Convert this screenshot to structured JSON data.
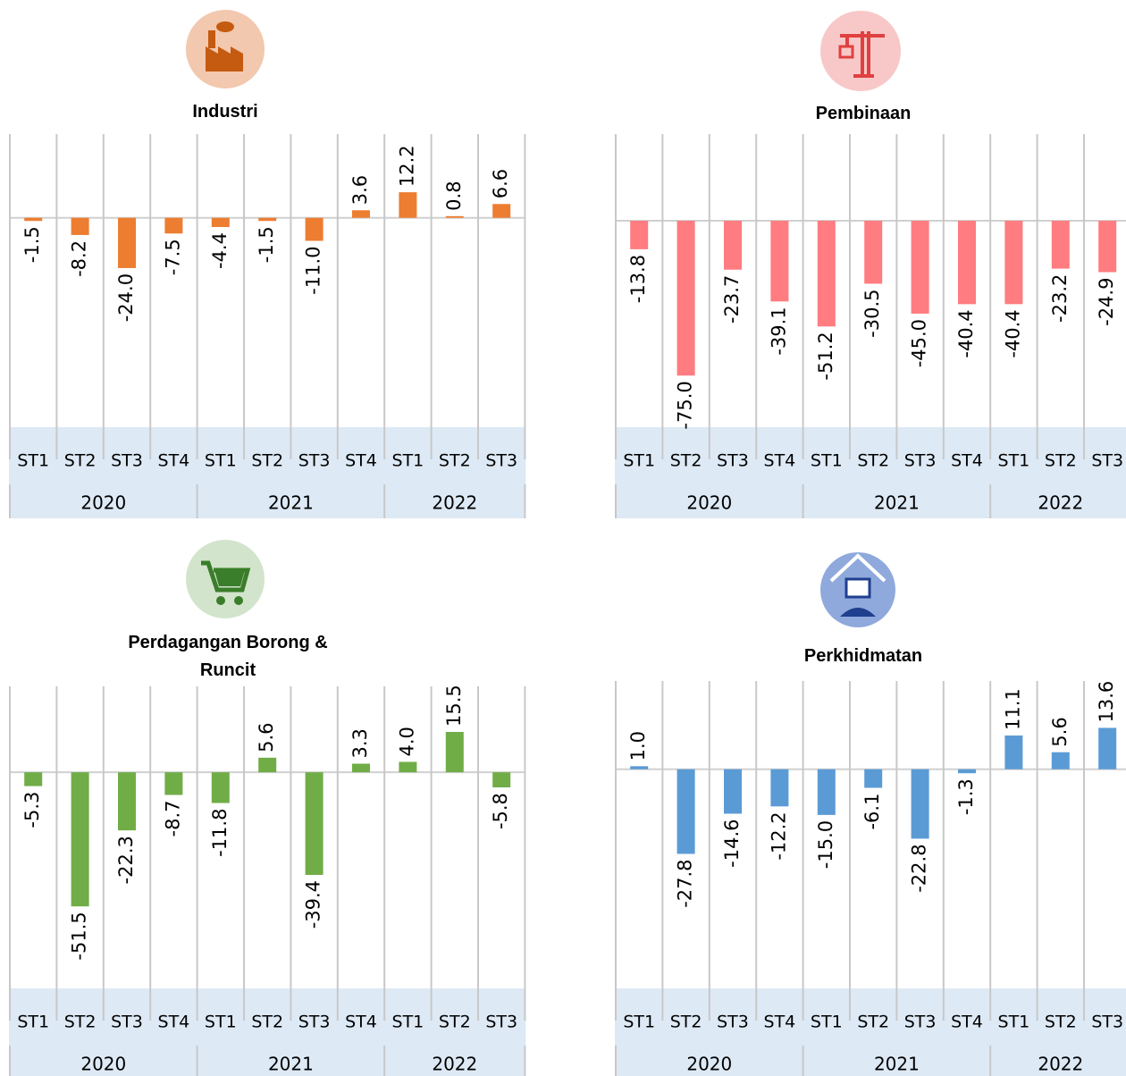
{
  "chart_data": [
    {
      "type": "bar",
      "title": "Industri",
      "color": "#ed7d31",
      "ylim": [
        -100,
        40
      ],
      "categories": [
        "ST1",
        "ST2",
        "ST3",
        "ST4",
        "ST1",
        "ST2",
        "ST3",
        "ST4",
        "ST1",
        "ST2",
        "ST3"
      ],
      "groups": [
        "2020",
        "2021",
        "2022"
      ],
      "values": [
        -1.5,
        -8.2,
        -24.0,
        -7.5,
        -4.4,
        -1.5,
        -11.0,
        3.6,
        12.2,
        0.8,
        6.6
      ],
      "value_labels": [
        "-1.5",
        "-8.2",
        "-24.0",
        "-7.5",
        "-4.4",
        "-1.5",
        "-11.0",
        "3.6",
        "12.2",
        "0.8",
        "6.6"
      ]
    },
    {
      "type": "bar",
      "title": "Pembinaan",
      "color": "#ff7c80",
      "ylim": [
        -100,
        42
      ],
      "categories": [
        "ST1",
        "ST2",
        "ST3",
        "ST4",
        "ST1",
        "ST2",
        "ST3",
        "ST4",
        "ST1",
        "ST2",
        "ST3"
      ],
      "groups": [
        "2020",
        "2021",
        "2022"
      ],
      "values": [
        -13.8,
        -75.0,
        -23.7,
        -39.1,
        -51.2,
        -30.5,
        -45.0,
        -40.4,
        -40.4,
        -23.2,
        -24.9
      ],
      "value_labels": [
        "-13.8",
        "-75.0",
        "-23.7",
        "-39.1",
        "-51.2",
        "-30.5",
        "-45.0",
        "-40.4",
        "-40.4",
        "-23.2",
        "-24.9"
      ]
    },
    {
      "type": "bar",
      "title": "Perdagangan Borong & Runcit",
      "color": "#70ad47",
      "ylim": [
        -83,
        33
      ],
      "categories": [
        "ST1",
        "ST2",
        "ST3",
        "ST4",
        "ST1",
        "ST2",
        "ST3",
        "ST4",
        "ST1",
        "ST2",
        "ST3"
      ],
      "groups": [
        "2020",
        "2021",
        "2022"
      ],
      "values": [
        -5.3,
        -51.5,
        -22.3,
        -8.7,
        -11.8,
        5.6,
        -39.4,
        3.3,
        4.0,
        15.5,
        -5.8
      ],
      "value_labels": [
        "-5.3",
        "-51.5",
        "-22.3",
        "-8.7",
        "-11.8",
        "5.6",
        "-39.4",
        "3.3",
        "4.0",
        "15.5",
        "-5.8"
      ]
    },
    {
      "type": "bar",
      "title": "Perkhidmatan",
      "color": "#5b9bd5",
      "ylim": [
        -72,
        29
      ],
      "categories": [
        "ST1",
        "ST2",
        "ST3",
        "ST4",
        "ST1",
        "ST2",
        "ST3",
        "ST4",
        "ST1",
        "ST2",
        "ST3"
      ],
      "groups": [
        "2020",
        "2021",
        "2022"
      ],
      "values": [
        1.0,
        -27.8,
        -14.6,
        -12.2,
        -15.0,
        -6.1,
        -22.8,
        -1.3,
        11.1,
        5.6,
        13.6
      ],
      "value_labels": [
        "1.0",
        "-27.8",
        "-14.6",
        "-12.2",
        "-15.0",
        "-6.1",
        "-22.8",
        "-1.3",
        "11.1",
        "5.6",
        "13.6"
      ]
    }
  ]
}
